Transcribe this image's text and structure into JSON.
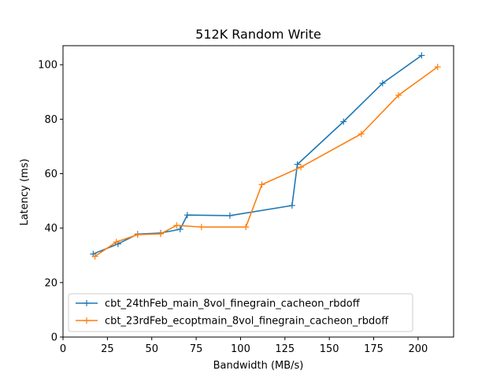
{
  "chart_data": {
    "type": "line",
    "title": "512K  Random Write",
    "xlabel": "Bandwidth (MB/s)",
    "ylabel": "Latency (ms)",
    "xlim": [
      0,
      220
    ],
    "ylim": [
      0,
      107
    ],
    "xticks": [
      0,
      25,
      50,
      75,
      100,
      125,
      150,
      175,
      200
    ],
    "yticks": [
      0,
      20,
      40,
      60,
      80,
      100
    ],
    "grid": false,
    "legend_position": "lower-left",
    "marker": "plus",
    "series": [
      {
        "name": "cbt_24thFeb_main_8vol_finegrain_cacheon_rbdoff",
        "color": "#1f77b4",
        "points": [
          [
            17,
            30.5
          ],
          [
            31,
            34.2
          ],
          [
            42,
            37.8
          ],
          [
            55,
            38.2
          ],
          [
            66,
            39.6
          ],
          [
            70,
            44.8
          ],
          [
            94,
            44.6
          ],
          [
            129,
            48.3
          ],
          [
            132,
            63.4
          ],
          [
            158,
            79.1
          ],
          [
            180,
            93.2
          ],
          [
            202,
            103.4
          ]
        ]
      },
      {
        "name": "cbt_23rdFeb_ecoptmain_8vol_finegrain_cacheon_rbdoff",
        "color": "#ff7f0e",
        "points": [
          [
            18,
            29.6
          ],
          [
            30,
            34.9
          ],
          [
            42,
            37.6
          ],
          [
            55,
            37.9
          ],
          [
            64,
            41.0
          ],
          [
            78,
            40.4
          ],
          [
            103,
            40.4
          ],
          [
            112,
            56.0
          ],
          [
            134,
            62.4
          ],
          [
            168,
            74.6
          ],
          [
            189,
            88.8
          ],
          [
            211,
            99.2
          ]
        ]
      }
    ]
  }
}
